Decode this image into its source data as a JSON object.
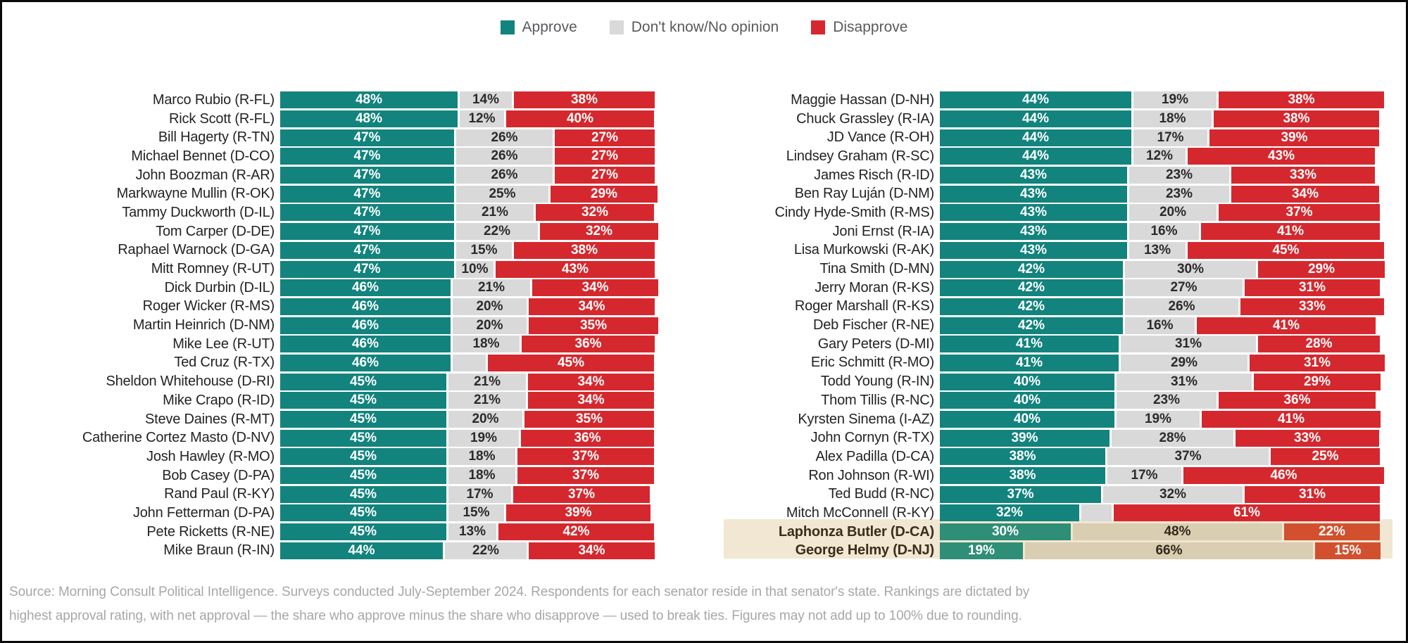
{
  "legend": {
    "items": [
      {
        "label": "Approve",
        "color": "#12837d"
      },
      {
        "label": "Don't know/No opinion",
        "color": "#d9d9d9"
      },
      {
        "label": "Disapprove",
        "color": "#d5282e"
      }
    ]
  },
  "colors": {
    "approve": "#12837d",
    "neutral": "#d9d9d9",
    "disapprove": "#d5282e",
    "highlight_bg": "#f1e7d2",
    "highlight_approve": "#2f8e77",
    "highlight_neutral": "#d9cdb2",
    "highlight_disapprove": "#d2502d"
  },
  "chart_data": {
    "type": "bar",
    "orientation": "horizontal",
    "stacked": true,
    "unit": "percent",
    "series_names": [
      "Approve",
      "Don't know/No opinion",
      "Disapprove"
    ],
    "label_rule": "segment data labels shown as 'NN%'; hidden when value is below 10",
    "legend_position": "top-center",
    "columns": [
      {
        "rows": [
          {
            "name": "Marco Rubio (R-FL)",
            "values": [
              48,
              14,
              38
            ]
          },
          {
            "name": "Rick Scott (R-FL)",
            "values": [
              48,
              12,
              40
            ]
          },
          {
            "name": "Bill Hagerty (R-TN)",
            "values": [
              47,
              26,
              27
            ]
          },
          {
            "name": "Michael Bennet (D-CO)",
            "values": [
              47,
              26,
              27
            ]
          },
          {
            "name": "John Boozman (R-AR)",
            "values": [
              47,
              26,
              27
            ]
          },
          {
            "name": "Markwayne Mullin (R-OK)",
            "values": [
              47,
              25,
              29
            ]
          },
          {
            "name": "Tammy Duckworth (D-IL)",
            "values": [
              47,
              21,
              32
            ]
          },
          {
            "name": "Tom Carper (D-DE)",
            "values": [
              47,
              22,
              32
            ]
          },
          {
            "name": "Raphael Warnock (D-GA)",
            "values": [
              47,
              15,
              38
            ]
          },
          {
            "name": "Mitt Romney (R-UT)",
            "values": [
              47,
              10,
              43
            ]
          },
          {
            "name": "Dick Durbin (D-IL)",
            "values": [
              46,
              21,
              34
            ]
          },
          {
            "name": "Roger Wicker (R-MS)",
            "values": [
              46,
              20,
              34
            ]
          },
          {
            "name": "Martin Heinrich (D-NM)",
            "values": [
              46,
              20,
              35
            ]
          },
          {
            "name": "Mike Lee (R-UT)",
            "values": [
              46,
              18,
              36
            ]
          },
          {
            "name": "Ted Cruz (R-TX)",
            "values": [
              46,
              9,
              45
            ]
          },
          {
            "name": "Sheldon Whitehouse (D-RI)",
            "values": [
              45,
              21,
              34
            ]
          },
          {
            "name": "Mike Crapo (R-ID)",
            "values": [
              45,
              21,
              34
            ]
          },
          {
            "name": "Steve Daines (R-MT)",
            "values": [
              45,
              20,
              35
            ]
          },
          {
            "name": "Catherine Cortez Masto (D-NV)",
            "values": [
              45,
              19,
              36
            ]
          },
          {
            "name": "Josh Hawley (R-MO)",
            "values": [
              45,
              18,
              37
            ]
          },
          {
            "name": "Bob Casey (D-PA)",
            "values": [
              45,
              18,
              37
            ]
          },
          {
            "name": "Rand Paul (R-KY)",
            "values": [
              45,
              17,
              37
            ]
          },
          {
            "name": "John Fetterman (D-PA)",
            "values": [
              45,
              15,
              39
            ]
          },
          {
            "name": "Pete Ricketts (R-NE)",
            "values": [
              45,
              13,
              42
            ]
          },
          {
            "name": "Mike Braun (R-IN)",
            "values": [
              44,
              22,
              34
            ]
          }
        ]
      },
      {
        "rows": [
          {
            "name": "Maggie Hassan (D-NH)",
            "values": [
              44,
              19,
              38
            ]
          },
          {
            "name": "Chuck Grassley (R-IA)",
            "values": [
              44,
              18,
              38
            ]
          },
          {
            "name": "JD Vance (R-OH)",
            "values": [
              44,
              17,
              39
            ]
          },
          {
            "name": "Lindsey Graham (R-SC)",
            "values": [
              44,
              12,
              43
            ]
          },
          {
            "name": "James Risch (R-ID)",
            "values": [
              43,
              23,
              33
            ]
          },
          {
            "name": "Ben Ray Luján (D-NM)",
            "values": [
              43,
              23,
              34
            ]
          },
          {
            "name": "Cindy Hyde-Smith (R-MS)",
            "values": [
              43,
              20,
              37
            ]
          },
          {
            "name": "Joni Ernst (R-IA)",
            "values": [
              43,
              16,
              41
            ]
          },
          {
            "name": "Lisa Murkowski (R-AK)",
            "values": [
              43,
              13,
              45
            ]
          },
          {
            "name": "Tina Smith (D-MN)",
            "values": [
              42,
              30,
              29
            ]
          },
          {
            "name": "Jerry Moran (R-KS)",
            "values": [
              42,
              27,
              31
            ]
          },
          {
            "name": "Roger Marshall (R-KS)",
            "values": [
              42,
              26,
              33
            ]
          },
          {
            "name": "Deb Fischer (R-NE)",
            "values": [
              42,
              16,
              41
            ]
          },
          {
            "name": "Gary Peters (D-MI)",
            "values": [
              41,
              31,
              28
            ]
          },
          {
            "name": "Eric Schmitt (R-MO)",
            "values": [
              41,
              29,
              31
            ]
          },
          {
            "name": "Todd Young (R-IN)",
            "values": [
              40,
              31,
              29
            ]
          },
          {
            "name": "Thom Tillis (R-NC)",
            "values": [
              40,
              23,
              36
            ]
          },
          {
            "name": "Kyrsten Sinema (I-AZ)",
            "values": [
              40,
              19,
              41
            ]
          },
          {
            "name": "John Cornyn (R-TX)",
            "values": [
              39,
              28,
              33
            ]
          },
          {
            "name": "Alex Padilla (D-CA)",
            "values": [
              38,
              37,
              25
            ]
          },
          {
            "name": "Ron Johnson (R-WI)",
            "values": [
              38,
              17,
              46
            ]
          },
          {
            "name": "Ted Budd (R-NC)",
            "values": [
              37,
              32,
              31
            ]
          },
          {
            "name": "Mitch McConnell (R-KY)",
            "values": [
              32,
              7,
              61
            ]
          },
          {
            "name": "Laphonza Butler (D-CA)",
            "values": [
              30,
              48,
              22
            ],
            "highlight": true
          },
          {
            "name": "George Helmy (D-NJ)",
            "values": [
              19,
              66,
              15
            ],
            "highlight": true
          }
        ]
      }
    ]
  },
  "source": {
    "lines": [
      "Source: Morning Consult Political Intelligence. Surveys conducted July-September 2024. Respondents for each senator reside in that senator's state. Rankings are dictated by",
      "highest approval rating, with net approval — the share who approve minus the share who disapprove — used to break ties. Figures may not add up to 100% due to rounding."
    ]
  }
}
